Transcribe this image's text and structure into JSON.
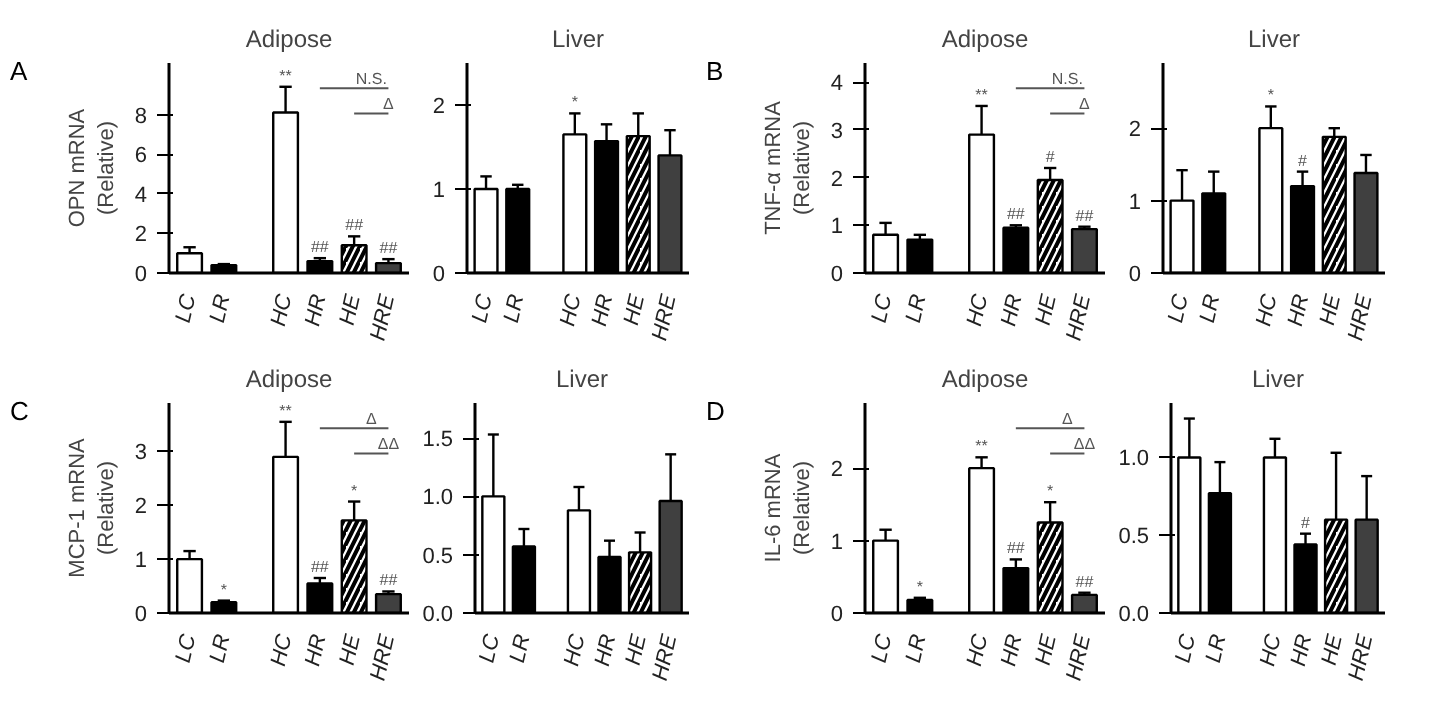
{
  "chart_data": [
    {
      "type": "bar",
      "title": "Adipose",
      "ylabel": "OPN mRNA\n(Relative)",
      "categories": [
        "LC",
        "LR",
        "HC",
        "HR",
        "HE",
        "HRE"
      ],
      "values": [
        1.0,
        0.4,
        8.1,
        0.6,
        1.4,
        0.5
      ],
      "colors": [
        "#ffffff",
        "#000000",
        "#ffffff",
        "#000000",
        "#ffffff",
        "#404040"
      ],
      "errors": [
        [
          1.0,
          1.3
        ],
        [
          0.4,
          0.45
        ],
        [
          8.1,
          9.4
        ],
        [
          0.6,
          0.75
        ],
        [
          1.4,
          1.85
        ],
        [
          0.5,
          0.7
        ]
      ],
      "ylim": [
        0,
        10.6
      ],
      "yticks": [
        0,
        2,
        4,
        6,
        8
      ],
      "grid": false,
      "annotations": [
        "A",
        {
          "text": "**",
          "x": "HC",
          "y": 9.4
        },
        {
          "text": "##",
          "x": "HR",
          "y": 0.75
        },
        {
          "text": "##",
          "x": "HE",
          "y": 1.85
        },
        {
          "text": "##",
          "x": "HRE",
          "y": 0.7
        },
        "N.S.",
        "Δ"
      ]
    },
    {
      "type": "bar",
      "title": "Liver",
      "categories": [
        "LC",
        "LR",
        "HC",
        "HR",
        "HE",
        "HRE"
      ],
      "values": [
        1.0,
        1.0,
        1.65,
        1.57,
        1.63,
        1.4
      ],
      "colors": [
        "#ffffff",
        "#000000",
        "#ffffff",
        "#000000",
        "#ffffff",
        "#404040"
      ],
      "errors": [
        [
          1.0,
          1.15
        ],
        [
          1.0,
          1.05
        ],
        [
          1.65,
          1.9
        ],
        [
          1.57,
          1.77
        ],
        [
          1.63,
          1.9
        ],
        [
          1.4,
          1.7
        ]
      ],
      "ylim": [
        0,
        2.5
      ],
      "yticks": [
        0,
        1,
        2
      ],
      "grid": false,
      "annotations": [
        {
          "text": "*",
          "x": "HC",
          "y": 1.9
        }
      ]
    },
    {
      "type": "bar",
      "title": "Adipose",
      "ylabel": "TNF-α mRNA\n(Relative)",
      "categories": [
        "LC",
        "LR",
        "HC",
        "HR",
        "HE",
        "HRE"
      ],
      "values": [
        0.8,
        0.7,
        2.9,
        0.95,
        1.95,
        0.92
      ],
      "colors": [
        "#ffffff",
        "#000000",
        "#ffffff",
        "#000000",
        "#ffffff",
        "#404040"
      ],
      "errors": [
        [
          0.8,
          1.05
        ],
        [
          0.7,
          0.8
        ],
        [
          2.9,
          3.5
        ],
        [
          0.95,
          1.0
        ],
        [
          1.95,
          2.2
        ],
        [
          0.92,
          0.97
        ]
      ],
      "ylim": [
        0,
        4.4
      ],
      "yticks": [
        0,
        1,
        2,
        3,
        4
      ],
      "grid": false,
      "annotations": [
        "B",
        {
          "text": "**",
          "x": "HC",
          "y": 3.5
        },
        {
          "text": "##",
          "x": "HR",
          "y": 1.0
        },
        {
          "text": "#",
          "x": "HE",
          "y": 2.2
        },
        {
          "text": "##",
          "x": "HRE",
          "y": 0.97
        },
        "N.S.",
        "Δ"
      ]
    },
    {
      "type": "bar",
      "title": "Liver",
      "categories": [
        "LC",
        "LR",
        "HC",
        "HR",
        "HE",
        "HRE"
      ],
      "values": [
        1.0,
        1.1,
        2.0,
        1.2,
        1.88,
        1.38
      ],
      "colors": [
        "#ffffff",
        "#000000",
        "#ffffff",
        "#000000",
        "#ffffff",
        "#404040"
      ],
      "errors": [
        [
          1.0,
          1.42
        ],
        [
          1.1,
          1.4
        ],
        [
          2.0,
          2.3
        ],
        [
          1.2,
          1.4
        ],
        [
          1.88,
          2.0
        ],
        [
          1.38,
          1.63
        ]
      ],
      "ylim": [
        0,
        2.9
      ],
      "yticks": [
        0,
        1,
        2
      ],
      "grid": false,
      "annotations": [
        {
          "text": "*",
          "x": "HC",
          "y": 2.3
        },
        {
          "text": "#",
          "x": "HR",
          "y": 1.4
        }
      ]
    },
    {
      "type": "bar",
      "title": "Adipose",
      "ylabel": "MCP-1 mRNA\n(Relative)",
      "categories": [
        "LC",
        "LR",
        "HC",
        "HR",
        "HE",
        "HRE"
      ],
      "values": [
        1.0,
        0.2,
        2.9,
        0.55,
        1.72,
        0.35
      ],
      "colors": [
        "#ffffff",
        "#000000",
        "#ffffff",
        "#000000",
        "#ffffff",
        "#404040"
      ],
      "errors": [
        [
          1.0,
          1.15
        ],
        [
          0.2,
          0.23
        ],
        [
          2.9,
          3.55
        ],
        [
          0.55,
          0.65
        ],
        [
          1.72,
          2.07
        ],
        [
          0.35,
          0.4
        ]
      ],
      "ylim": [
        0,
        3.9
      ],
      "yticks": [
        0,
        1,
        2,
        3
      ],
      "grid": false,
      "annotations": [
        "C",
        {
          "text": "*",
          "x": "LR",
          "y": 0.23
        },
        {
          "text": "**",
          "x": "HC",
          "y": 3.55
        },
        {
          "text": "##",
          "x": "HR",
          "y": 0.65
        },
        {
          "text": "*",
          "x": "HE",
          "y": 2.07
        },
        {
          "text": "##",
          "x": "HRE",
          "y": 0.4
        },
        "Δ",
        "ΔΔ"
      ]
    },
    {
      "type": "bar",
      "title": "Liver",
      "categories": [
        "LC",
        "LR",
        "HC",
        "HR",
        "HE",
        "HRE"
      ],
      "values": [
        1.0,
        0.57,
        0.88,
        0.48,
        0.52,
        0.96
      ],
      "colors": [
        "#ffffff",
        "#000000",
        "#ffffff",
        "#000000",
        "#ffffff",
        "#404040"
      ],
      "errors": [
        [
          1.0,
          1.53
        ],
        [
          0.57,
          0.72
        ],
        [
          0.88,
          1.08
        ],
        [
          0.48,
          0.62
        ],
        [
          0.52,
          0.69
        ],
        [
          0.96,
          1.36
        ]
      ],
      "ylim": [
        0,
        1.8
      ],
      "yticks": [
        {
          "value": 0,
          "label": "0.0"
        },
        {
          "value": 0.5,
          "label": "0.5"
        },
        {
          "value": 1,
          "label": "1.0"
        },
        {
          "value": 1.5,
          "label": "1.5"
        }
      ],
      "grid": false
    },
    {
      "type": "bar",
      "title": "Adipose",
      "ylabel": "IL-6 mRNA\n(Relative)",
      "categories": [
        "LC",
        "LR",
        "HC",
        "HR",
        "HE",
        "HRE"
      ],
      "values": [
        1.0,
        0.18,
        2.0,
        0.62,
        1.25,
        0.25
      ],
      "colors": [
        "#ffffff",
        "#000000",
        "#ffffff",
        "#000000",
        "#ffffff",
        "#404040"
      ],
      "errors": [
        [
          1.0,
          1.15
        ],
        [
          0.18,
          0.21
        ],
        [
          2.0,
          2.15
        ],
        [
          0.62,
          0.74
        ],
        [
          1.25,
          1.53
        ],
        [
          0.25,
          0.28
        ]
      ],
      "ylim": [
        0,
        2.9
      ],
      "yticks": [
        0,
        1,
        2
      ],
      "grid": false,
      "annotations": [
        "D",
        {
          "text": "*",
          "x": "LR",
          "y": 0.21
        },
        {
          "text": "**",
          "x": "HC",
          "y": 2.15
        },
        {
          "text": "##",
          "x": "HR",
          "y": 0.74
        },
        {
          "text": "*",
          "x": "HE",
          "y": 1.53
        },
        {
          "text": "##",
          "x": "HRE",
          "y": 0.28
        },
        "Δ",
        "ΔΔ"
      ]
    },
    {
      "type": "bar",
      "title": "Liver",
      "categories": [
        "LC",
        "LR",
        "HC",
        "HR",
        "HE",
        "HRE"
      ],
      "values": [
        1.0,
        0.77,
        1.0,
        0.44,
        0.6,
        0.6
      ],
      "colors": [
        "#ffffff",
        "#000000",
        "#ffffff",
        "#000000",
        "#ffffff",
        "#404040"
      ],
      "errors": [
        [
          1.0,
          1.25
        ],
        [
          0.77,
          0.97
        ],
        [
          1.0,
          1.12
        ],
        [
          0.44,
          0.51
        ],
        [
          0.6,
          1.03
        ],
        [
          0.6,
          0.88
        ]
      ],
      "ylim": [
        0,
        1.35
      ],
      "yticks": [
        {
          "value": 0,
          "label": "0.0"
        },
        {
          "value": 0.5,
          "label": "0.5"
        },
        {
          "value": 1,
          "label": "1.0"
        }
      ],
      "grid": false,
      "annotations": [
        {
          "text": "#",
          "x": "HR",
          "y": 0.51
        }
      ]
    }
  ]
}
